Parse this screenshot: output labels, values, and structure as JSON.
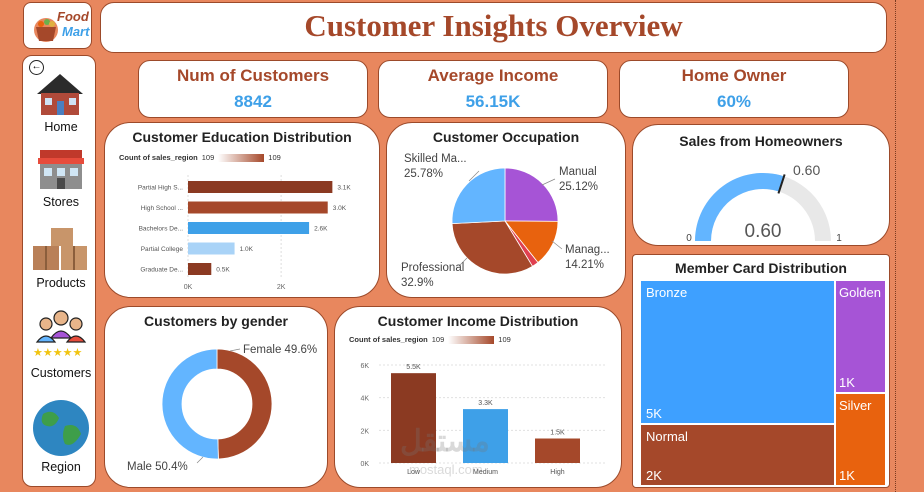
{
  "header": {
    "title": "Customer Insights Overview"
  },
  "logo": {
    "line1": "Food",
    "line2": "Mart"
  },
  "nav": {
    "items": [
      {
        "label": "Home",
        "icon": "house-icon"
      },
      {
        "label": "Stores",
        "icon": "store-icon"
      },
      {
        "label": "Products",
        "icon": "boxes-icon"
      },
      {
        "label": "Customers",
        "icon": "people-icon"
      },
      {
        "label": "Region",
        "icon": "globe-icon"
      }
    ]
  },
  "kpis": [
    {
      "label": "Num of Customers",
      "value": "8842"
    },
    {
      "label": "Average Income",
      "value": "56.15K"
    },
    {
      "label": "Home Owner",
      "value": "60%"
    }
  ],
  "colors": {
    "brown": "#A5482A",
    "blue": "#3EA0E8",
    "light_blue": "#63B5FF",
    "purple": "#A654D6",
    "orange": "#E8620E",
    "bg": "#E8875E"
  },
  "chart_data": [
    {
      "id": "education",
      "type": "bar",
      "orientation": "horizontal",
      "title": "Customer Education Distribution",
      "legend": {
        "label": "Count of sales_region",
        "min": "109",
        "max": "109"
      },
      "categories": [
        "Partial High S...",
        "High School ...",
        "Bachelors De...",
        "Partial College",
        "Graduate De..."
      ],
      "values": [
        3100,
        3000,
        2600,
        1000,
        500
      ],
      "labels": [
        "3.1K",
        "3.0K",
        "2.6K",
        "1.0K",
        "0.5K"
      ],
      "bar_colors": [
        "#8B3A22",
        "#A5482A",
        "#3EA0E8",
        "#A9D3F7",
        "#8B3A22"
      ],
      "ticks": [
        "0K",
        "2K"
      ],
      "xlim": [
        0,
        3500
      ]
    },
    {
      "id": "occupation",
      "type": "pie",
      "title": "Customer Occupation",
      "slices": [
        {
          "name": "Manual",
          "value": 25.12,
          "label": "25.12%",
          "color": "#A654D6"
        },
        {
          "name": "Manag...",
          "value": 14.21,
          "label": "14.21%",
          "color": "#E8620E"
        },
        {
          "name": "",
          "value": 1.99,
          "color": "#E04050"
        },
        {
          "name": "Professional",
          "value": 32.9,
          "label": "32.9%",
          "color": "#A5482A"
        },
        {
          "name": "Skilled Ma...",
          "value": 25.78,
          "label": "25.78%",
          "color": "#63B5FF"
        }
      ]
    },
    {
      "id": "homeowner_gauge",
      "type": "gauge",
      "title": "Sales from Homeowners",
      "value": 0.6,
      "min": 0,
      "max": 1,
      "target": 0.6,
      "value_label": "0.60",
      "target_label": "0.60",
      "min_label": "0",
      "max_label": "1"
    },
    {
      "id": "gender",
      "type": "donut",
      "title": "Customers by gender",
      "slices": [
        {
          "name": "Female",
          "value": 49.6,
          "label": "Female 49.6%",
          "color": "#A5482A"
        },
        {
          "name": "Male",
          "value": 50.4,
          "label": "Male 50.4%",
          "color": "#63B5FF"
        }
      ]
    },
    {
      "id": "income",
      "type": "bar",
      "orientation": "vertical",
      "title": "Customer Income Distribution",
      "legend": {
        "label": "Count of sales_region",
        "min": "109",
        "max": "109"
      },
      "categories": [
        "Low",
        "Medium",
        "High"
      ],
      "values": [
        5500,
        3300,
        1500
      ],
      "labels": [
        "5.5K",
        "3.3K",
        "1.5K"
      ],
      "bar_colors": [
        "#8B3A22",
        "#3EA0E8",
        "#A5482A"
      ],
      "ticks": [
        "0K",
        "2K",
        "4K",
        "6K"
      ],
      "ylim": [
        0,
        6000
      ]
    },
    {
      "id": "member_card",
      "type": "treemap",
      "title": "Member Card Distribution",
      "items": [
        {
          "name": "Bronze",
          "value": 5000,
          "label": "5K",
          "color": "#3EA0FF"
        },
        {
          "name": "Golden",
          "value": 1000,
          "label": "1K",
          "color": "#A654D6"
        },
        {
          "name": "Normal",
          "value": 2000,
          "label": "2K",
          "color": "#A5482A"
        },
        {
          "name": "Silver",
          "value": 1000,
          "label": "1K",
          "color": "#E8620E"
        }
      ]
    }
  ],
  "watermark": {
    "line1": "مستقل",
    "line2": "mostaql.com"
  }
}
